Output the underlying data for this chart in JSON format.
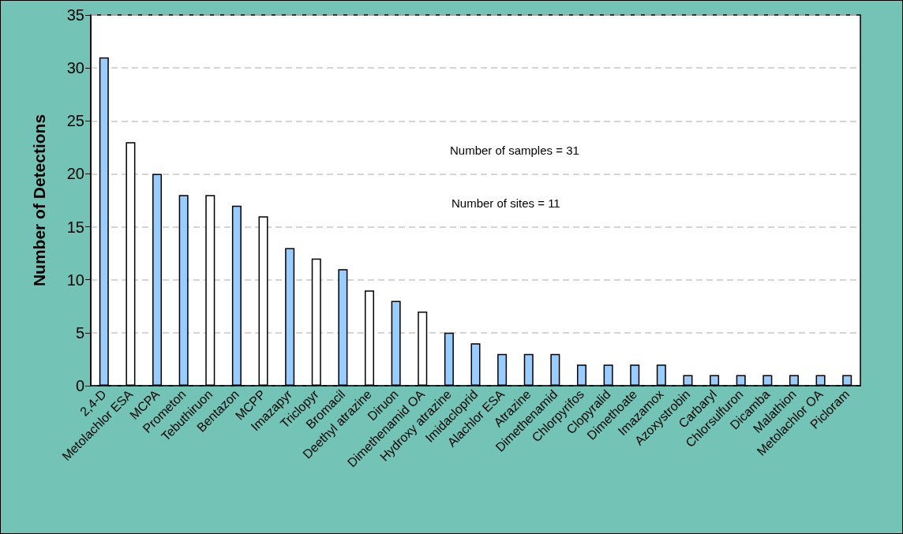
{
  "chart_data": {
    "type": "bar",
    "ylabel": "Number of Detections",
    "categories": [
      "2,4-D",
      "Metolachlor ESA",
      "MCPA",
      "Prometon",
      "Tebuthiruon",
      "Bentazon",
      "MCPP",
      "Imazapyr",
      "Triclopyr",
      "Bromacil",
      "Deethyl atrazine",
      "Diruon",
      "Dimethenamid OA",
      "Hydroxy atrazine",
      "Imidacloprid",
      "Alachlor ESA",
      "Atrazine",
      "Dimethenamid",
      "Chlorpyrifos",
      "Clopyralid",
      "Dimethoate",
      "Imazamox",
      "Azoxystrobin",
      "Carbaryl",
      "Chlorsulfuron",
      "Dicamba",
      "Malathion",
      "Metolachlor OA",
      "Picloram"
    ],
    "values": [
      31,
      23,
      20,
      18,
      18,
      17,
      16,
      13,
      12,
      11,
      9,
      8,
      7,
      5,
      4,
      3,
      3,
      3,
      2,
      2,
      2,
      2,
      1,
      1,
      1,
      1,
      1,
      1,
      1
    ],
    "colors": [
      "#99ccff",
      "#ffffff",
      "#99ccff",
      "#99ccff",
      "#ffffff",
      "#99ccff",
      "#ffffff",
      "#99ccff",
      "#ffffff",
      "#99ccff",
      "#ffffff",
      "#99ccff",
      "#ffffff",
      "#99ccff",
      "#99ccff",
      "#99ccff",
      "#99ccff",
      "#99ccff",
      "#99ccff",
      "#99ccff",
      "#99ccff",
      "#99ccff",
      "#99ccff",
      "#99ccff",
      "#99ccff",
      "#99ccff",
      "#99ccff",
      "#99ccff",
      "#99ccff"
    ],
    "ylim": [
      0,
      35
    ],
    "yticks": [
      0,
      5,
      10,
      15,
      20,
      25,
      30,
      35
    ],
    "grid": "y",
    "annotations": [
      "Number of samples = 31",
      "Number of sites = 11"
    ]
  }
}
